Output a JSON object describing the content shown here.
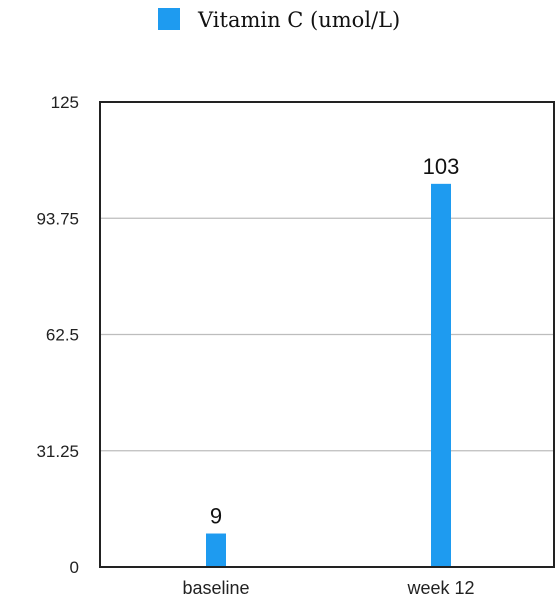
{
  "chart_data": {
    "type": "bar",
    "title": "",
    "xlabel": "",
    "ylabel": "",
    "categories": [
      "baseline",
      "week 12"
    ],
    "series": [
      {
        "name": "Vitamin C  (umol/L)",
        "values": [
          9,
          103
        ],
        "color": "#1e9bf0"
      }
    ],
    "data_labels": [
      "9",
      "103"
    ],
    "ylim": [
      0,
      125
    ],
    "yticks": [
      0,
      31.25,
      62.5,
      93.75,
      125
    ],
    "ytick_labels": [
      "0",
      "31.25",
      "62.5",
      "93.75",
      "125"
    ],
    "grid": true,
    "legend_position": "top-center"
  }
}
